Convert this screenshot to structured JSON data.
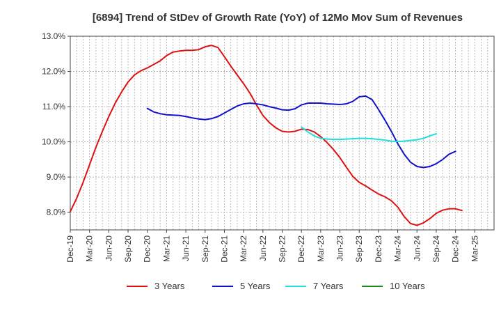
{
  "chart_data": {
    "type": "line",
    "title": "[6894]  Trend of StDev of Growth Rate (YoY) of 12Mo Mov Sum of Revenues",
    "xlabel": "",
    "ylabel": "",
    "ylim": [
      7.5,
      13.0
    ],
    "y_ticks": [
      {
        "value": 8.0,
        "label": "8.0%"
      },
      {
        "value": 9.0,
        "label": "9.0%"
      },
      {
        "value": 10.0,
        "label": "10.0%"
      },
      {
        "value": 11.0,
        "label": "11.0%"
      },
      {
        "value": 12.0,
        "label": "12.0%"
      },
      {
        "value": 13.0,
        "label": "13.0%"
      }
    ],
    "x_range": [
      0,
      66
    ],
    "x_ticks": [
      {
        "value": 0,
        "label": "Dec-19"
      },
      {
        "value": 3,
        "label": "Mar-20"
      },
      {
        "value": 6,
        "label": "Jun-20"
      },
      {
        "value": 9,
        "label": "Sep-20"
      },
      {
        "value": 12,
        "label": "Dec-20"
      },
      {
        "value": 15,
        "label": "Mar-21"
      },
      {
        "value": 18,
        "label": "Jun-21"
      },
      {
        "value": 21,
        "label": "Sep-21"
      },
      {
        "value": 24,
        "label": "Dec-21"
      },
      {
        "value": 27,
        "label": "Mar-22"
      },
      {
        "value": 30,
        "label": "Jun-22"
      },
      {
        "value": 33,
        "label": "Sep-22"
      },
      {
        "value": 36,
        "label": "Dec-22"
      },
      {
        "value": 39,
        "label": "Mar-23"
      },
      {
        "value": 42,
        "label": "Jun-23"
      },
      {
        "value": 45,
        "label": "Sep-23"
      },
      {
        "value": 48,
        "label": "Dec-23"
      },
      {
        "value": 51,
        "label": "Mar-24"
      },
      {
        "value": 54,
        "label": "Jun-24"
      },
      {
        "value": 57,
        "label": "Sep-24"
      },
      {
        "value": 60,
        "label": "Dec-24"
      },
      {
        "value": 63,
        "label": "Mar-25"
      }
    ],
    "grid": true,
    "legend_position": "bottom",
    "series": [
      {
        "name": "3 Years",
        "color": "#dd1111",
        "start": 0,
        "values": [
          8.02,
          8.4,
          8.85,
          9.35,
          9.85,
          10.3,
          10.72,
          11.1,
          11.42,
          11.7,
          11.9,
          12.02,
          12.1,
          12.2,
          12.3,
          12.45,
          12.55,
          12.58,
          12.6,
          12.6,
          12.62,
          12.7,
          12.74,
          12.68,
          12.42,
          12.15,
          11.9,
          11.65,
          11.38,
          11.05,
          10.75,
          10.55,
          10.4,
          10.3,
          10.28,
          10.3,
          10.36,
          10.35,
          10.28,
          10.15,
          9.98,
          9.78,
          9.55,
          9.28,
          9.02,
          8.85,
          8.75,
          8.63,
          8.52,
          8.44,
          8.33,
          8.15,
          7.88,
          7.68,
          7.63,
          7.7,
          7.82,
          7.97,
          8.06,
          8.1,
          8.1,
          8.05
        ]
      },
      {
        "name": "5 Years",
        "color": "#1111cc",
        "start": 12,
        "values": [
          10.95,
          10.85,
          10.8,
          10.77,
          10.76,
          10.75,
          10.72,
          10.68,
          10.65,
          10.63,
          10.66,
          10.72,
          10.82,
          10.92,
          11.02,
          11.08,
          11.1,
          11.08,
          11.05,
          11.0,
          10.96,
          10.91,
          10.9,
          10.94,
          11.05,
          11.1,
          11.1,
          11.1,
          11.08,
          11.07,
          11.06,
          11.08,
          11.15,
          11.28,
          11.3,
          11.2,
          10.92,
          10.62,
          10.3,
          9.95,
          9.65,
          9.42,
          9.3,
          9.27,
          9.3,
          9.38,
          9.5,
          9.65,
          9.73
        ]
      },
      {
        "name": "7 Years",
        "color": "#22dddd",
        "start": 36,
        "values": [
          10.42,
          10.28,
          10.17,
          10.1,
          10.08,
          10.07,
          10.07,
          10.08,
          10.09,
          10.1,
          10.1,
          10.09,
          10.07,
          10.05,
          10.02,
          10.01,
          10.02,
          10.04,
          10.06,
          10.1,
          10.17,
          10.23
        ]
      },
      {
        "name": "10 Years",
        "color": "#228822",
        "start": 0,
        "values": []
      }
    ]
  }
}
